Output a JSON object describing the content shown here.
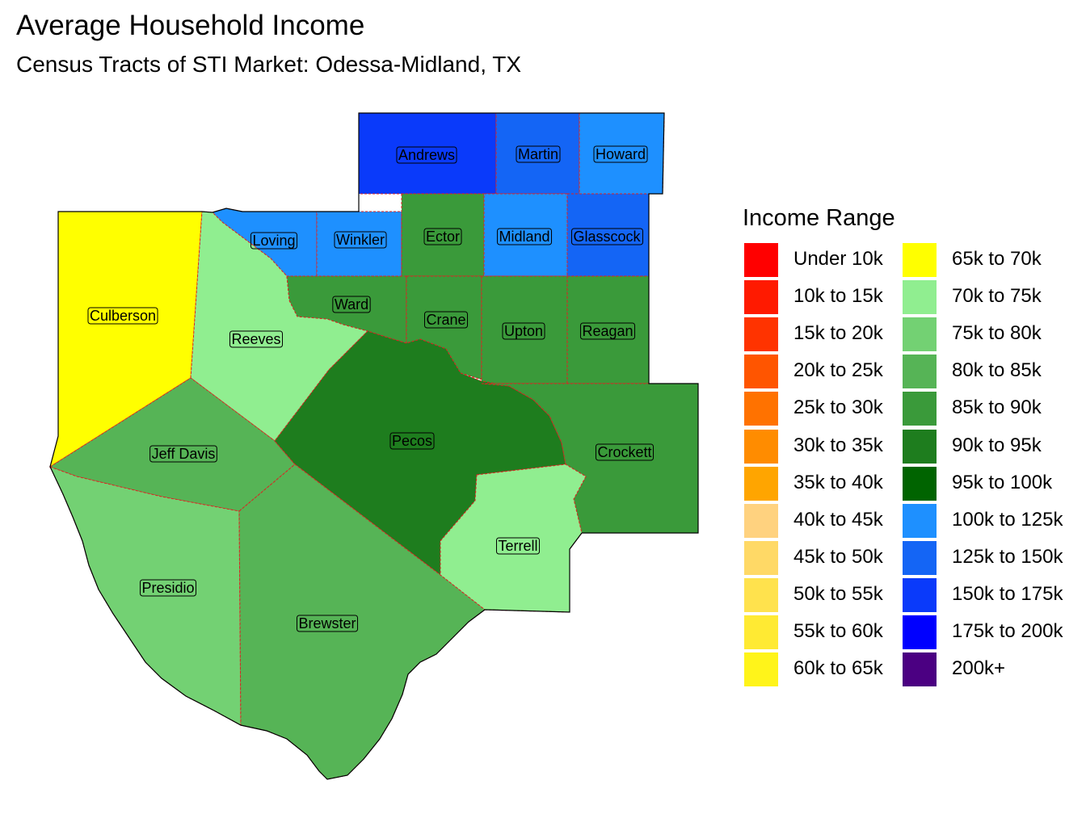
{
  "title": "Average Household Income",
  "subtitle": "Census Tracts of STI Market: Odessa-Midland, TX",
  "legend": {
    "title": "Income Range",
    "items": [
      {
        "label": "Under 10k",
        "color": "#FF0000"
      },
      {
        "label": "10k to 15k",
        "color": "#FF1A00"
      },
      {
        "label": "15k to 20k",
        "color": "#FF3300"
      },
      {
        "label": "20k to 25k",
        "color": "#FF5500"
      },
      {
        "label": "25k to 30k",
        "color": "#FF7200"
      },
      {
        "label": "30k to 35k",
        "color": "#FF8C00"
      },
      {
        "label": "35k to 40k",
        "color": "#FFA500"
      },
      {
        "label": "40k to 45k",
        "color": "#FFD27F"
      },
      {
        "label": "45k to 50k",
        "color": "#FFD966"
      },
      {
        "label": "50k to 55k",
        "color": "#FFE24D"
      },
      {
        "label": "55k to 60k",
        "color": "#FFEA33"
      },
      {
        "label": "60k to 65k",
        "color": "#FFF41A"
      },
      {
        "label": "65k to 70k",
        "color": "#FFFF00"
      },
      {
        "label": "70k to 75k",
        "color": "#90EE90"
      },
      {
        "label": "75k to 80k",
        "color": "#73D173"
      },
      {
        "label": "80k to 85k",
        "color": "#56B456"
      },
      {
        "label": "85k to 90k",
        "color": "#3A9A3A"
      },
      {
        "label": "90k to 95k",
        "color": "#1E7D1E"
      },
      {
        "label": "95k to 100k",
        "color": "#006400"
      },
      {
        "label": "100k to 125k",
        "color": "#1E90FF"
      },
      {
        "label": "125k to 150k",
        "color": "#1465F5"
      },
      {
        "label": "150k to 175k",
        "color": "#0A3AFA"
      },
      {
        "label": "175k to 200k",
        "color": "#0000FF"
      },
      {
        "label": "200k+",
        "color": "#4B0082"
      }
    ]
  },
  "counties": [
    {
      "id": "andrews",
      "name": "Andrews",
      "fill": "#0A3AFA"
    },
    {
      "id": "martin",
      "name": "Martin",
      "fill": "#1465F5"
    },
    {
      "id": "howard",
      "name": "Howard",
      "fill": "#1E90FF"
    },
    {
      "id": "loving",
      "name": "Loving",
      "fill": "#1E90FF"
    },
    {
      "id": "winkler",
      "name": "Winkler",
      "fill": "#1E90FF"
    },
    {
      "id": "ector",
      "name": "Ector",
      "fill": "#3A9A3A"
    },
    {
      "id": "midland",
      "name": "Midland",
      "fill": "#1E90FF"
    },
    {
      "id": "glasscock",
      "name": "Glasscock",
      "fill": "#1465F5"
    },
    {
      "id": "culberson",
      "name": "Culberson",
      "fill": "#FFFF00"
    },
    {
      "id": "reeves",
      "name": "Reeves",
      "fill": "#90EE90"
    },
    {
      "id": "ward",
      "name": "Ward",
      "fill": "#3A9A3A"
    },
    {
      "id": "crane",
      "name": "Crane",
      "fill": "#3A9A3A"
    },
    {
      "id": "upton",
      "name": "Upton",
      "fill": "#3A9A3A"
    },
    {
      "id": "reagan",
      "name": "Reagan",
      "fill": "#3A9A3A"
    },
    {
      "id": "jeff-davis",
      "name": "Jeff Davis",
      "fill": "#56B456"
    },
    {
      "id": "pecos",
      "name": "Pecos",
      "fill": "#1E7D1E"
    },
    {
      "id": "crockett",
      "name": "Crockett",
      "fill": "#3A9A3A"
    },
    {
      "id": "terrell",
      "name": "Terrell",
      "fill": "#90EE90"
    },
    {
      "id": "presidio",
      "name": "Presidio",
      "fill": "#73D173"
    },
    {
      "id": "brewster",
      "name": "Brewster",
      "fill": "#56B456"
    }
  ]
}
